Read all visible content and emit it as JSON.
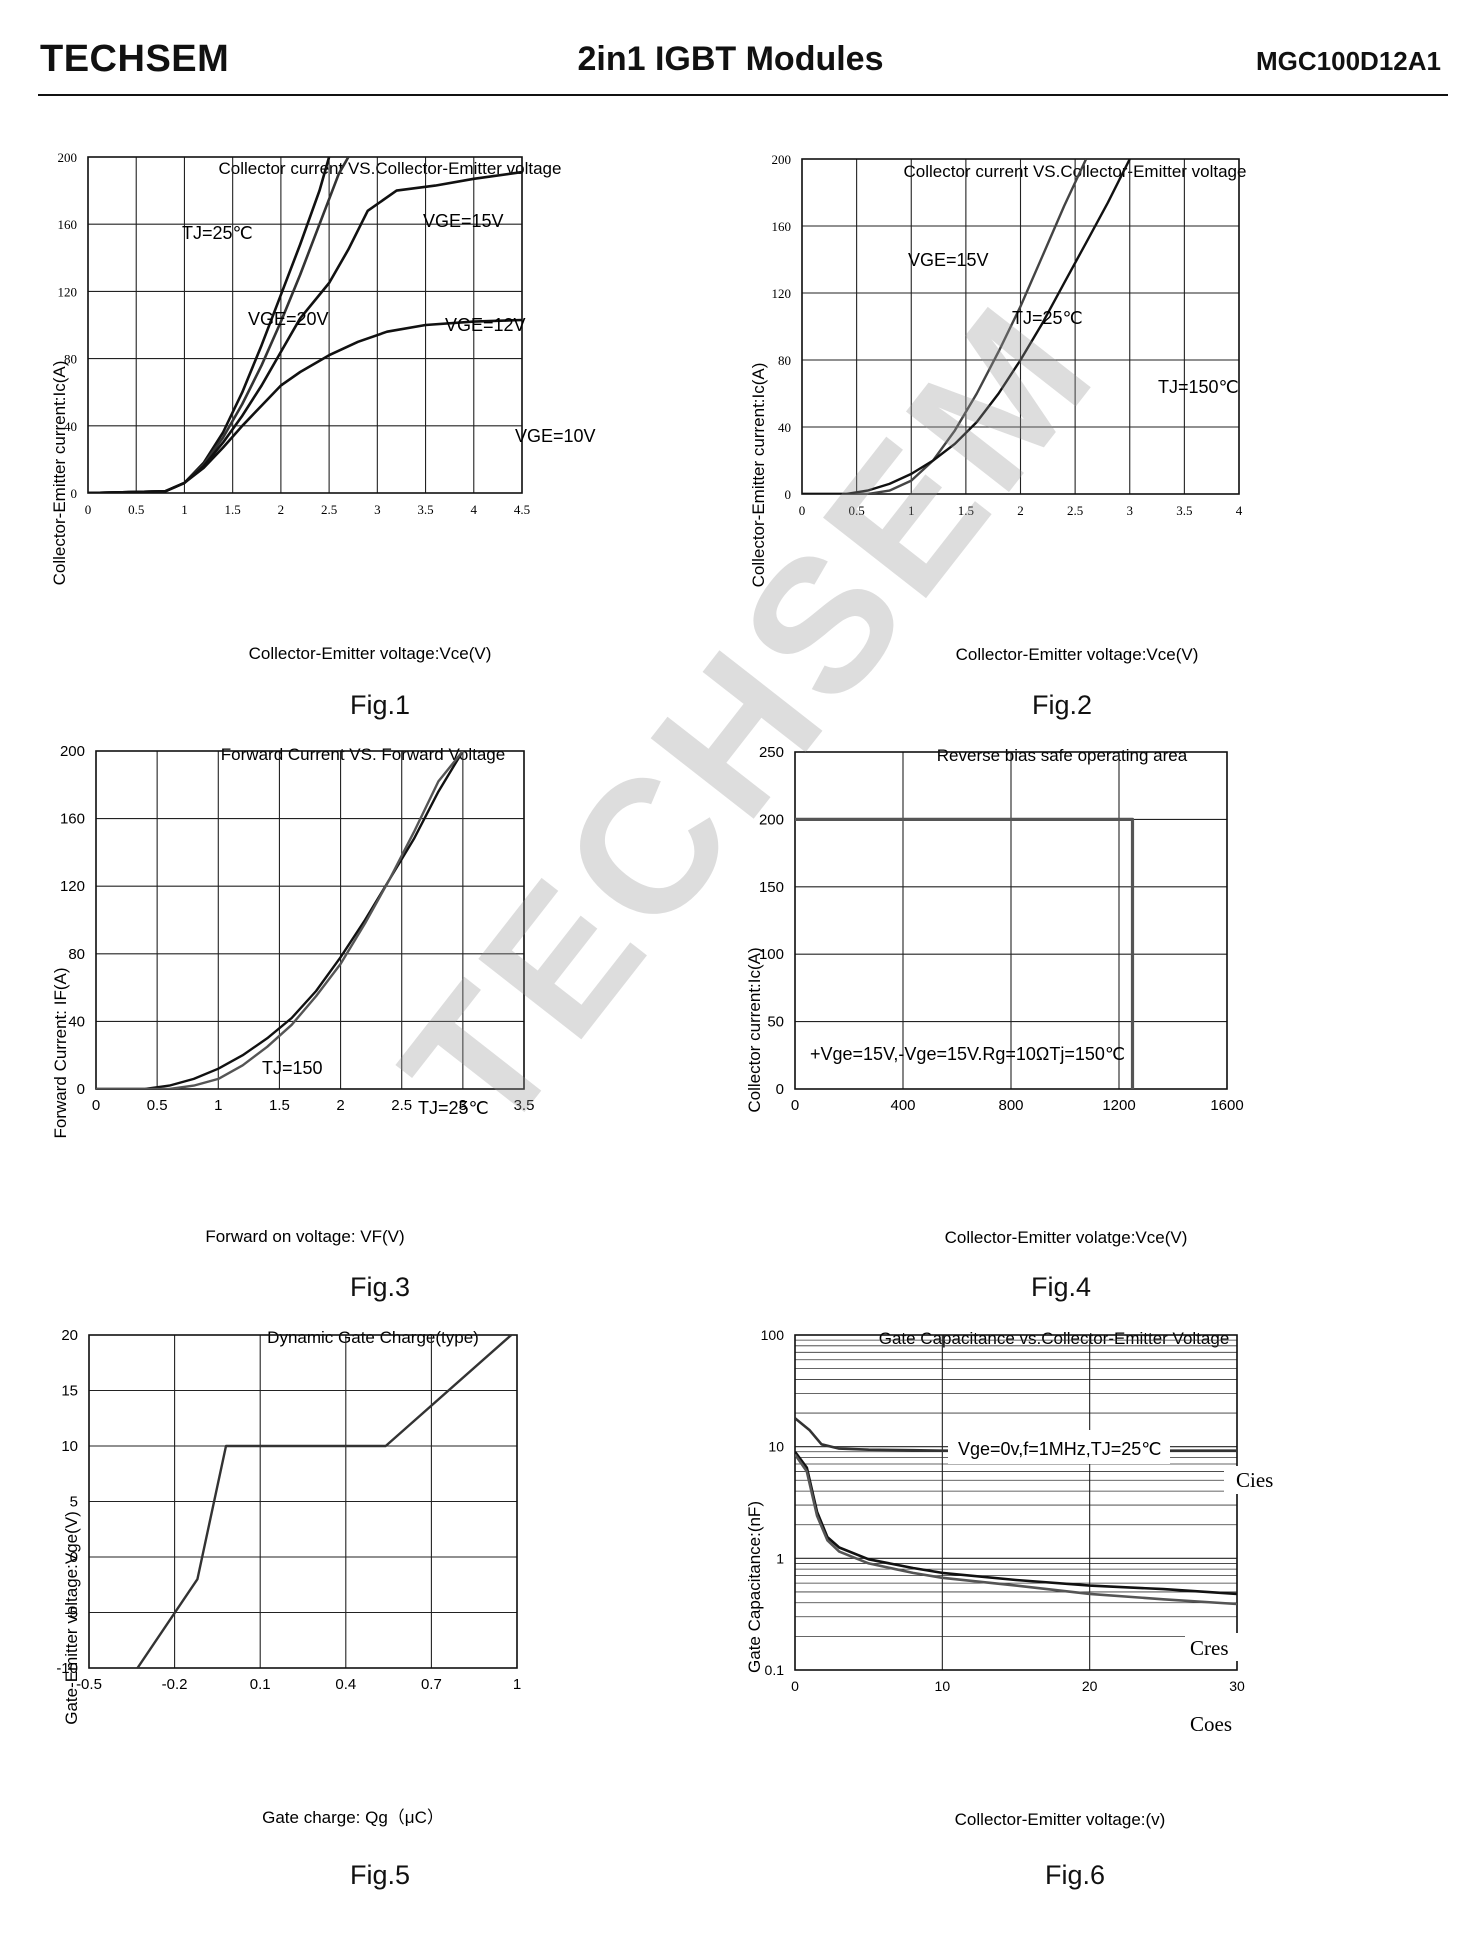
{
  "header": {
    "brand": "TECHSEM",
    "title": "2in1  IGBT  Modules",
    "model": "MGC100D12A1"
  },
  "watermark": "TECHSEM",
  "figures": [
    {
      "label": "Fig.1"
    },
    {
      "label": "Fig.2"
    },
    {
      "label": "Fig.3"
    },
    {
      "label": "Fig.4"
    },
    {
      "label": "Fig.5"
    },
    {
      "label": "Fig.6"
    }
  ],
  "chart_data": [
    {
      "type": "line",
      "title": "Collector current VS.Collector-Emitter voltage",
      "xlabel": "Collector-Emitter voltage:Vce(V)",
      "ylabel": "Collector-Emitter current:Ic(A)",
      "xlim": [
        0,
        4.5
      ],
      "ylim": [
        0,
        200
      ],
      "xticks": [
        "0",
        "0.5",
        "1",
        "1.5",
        "2",
        "2.5",
        "3",
        "3.5",
        "4",
        "4.5"
      ],
      "yticks": [
        "0",
        "40",
        "80",
        "120",
        "160",
        "200"
      ],
      "grid": true,
      "series": [
        {
          "name": "VGE=20V",
          "x": [
            0,
            0.8,
            1.0,
            1.2,
            1.4,
            1.6,
            1.8,
            2.0,
            2.2,
            2.4,
            2.5
          ],
          "y": [
            0,
            1,
            6,
            18,
            36,
            60,
            88,
            118,
            148,
            180,
            200
          ]
        },
        {
          "name": "VGE=15V",
          "x": [
            0,
            0.8,
            1.0,
            1.2,
            1.4,
            1.6,
            1.8,
            2.0,
            2.2,
            2.4,
            2.6,
            2.7
          ],
          "y": [
            0,
            1,
            6,
            17,
            33,
            53,
            76,
            102,
            130,
            160,
            190,
            200
          ]
        },
        {
          "name": "VGE=12V",
          "x": [
            0,
            0.8,
            1.0,
            1.2,
            1.4,
            1.6,
            1.8,
            2.0,
            2.2,
            2.5,
            2.7,
            2.9,
            3.2,
            3.6,
            4.0,
            4.5
          ],
          "y": [
            0,
            1,
            6,
            16,
            30,
            46,
            64,
            84,
            104,
            125,
            145,
            168,
            180,
            183,
            187,
            191
          ]
        },
        {
          "name": "VGE=10V",
          "x": [
            0,
            0.8,
            1.0,
            1.2,
            1.4,
            1.6,
            1.8,
            2.0,
            2.2,
            2.5,
            2.8,
            3.1,
            3.5,
            4.0,
            4.5
          ],
          "y": [
            0,
            1,
            6,
            15,
            27,
            40,
            52,
            64,
            72,
            82,
            90,
            96,
            100,
            102,
            103
          ]
        }
      ],
      "annotations": [
        "TJ=25℃",
        "VGE=20V",
        "VGE=15V",
        "VGE=12V",
        "VGE=10V"
      ]
    },
    {
      "type": "line",
      "title": "Collector current VS.Collector-Emitter voltage",
      "xlabel": "Collector-Emitter voltage:Vce(V)",
      "ylabel": "Collector-Emitter current:Ic(A)",
      "xlim": [
        0,
        4
      ],
      "ylim": [
        0,
        200
      ],
      "xticks": [
        "0",
        "0.5",
        "1",
        "1.5",
        "2",
        "2.5",
        "3",
        "3.5",
        "4"
      ],
      "yticks": [
        "0",
        "40",
        "80",
        "120",
        "160",
        "200"
      ],
      "grid": true,
      "series": [
        {
          "name": "TJ=25℃",
          "x": [
            0,
            0.6,
            0.8,
            1.0,
            1.2,
            1.4,
            1.6,
            1.8,
            2.0,
            2.2,
            2.4,
            2.6
          ],
          "y": [
            0,
            0,
            2,
            8,
            20,
            38,
            60,
            85,
            112,
            142,
            172,
            200
          ]
        },
        {
          "name": "TJ=150℃",
          "x": [
            0,
            0.4,
            0.6,
            0.8,
            1.0,
            1.2,
            1.4,
            1.6,
            1.8,
            2.0,
            2.2,
            2.4,
            2.6,
            2.8,
            3.0
          ],
          "y": [
            0,
            0,
            2,
            6,
            12,
            20,
            30,
            43,
            60,
            80,
            102,
            126,
            150,
            174,
            200
          ]
        }
      ],
      "annotations": [
        "VGE=15V",
        "TJ=25℃",
        "TJ=150℃"
      ]
    },
    {
      "type": "line",
      "title": "Forward Current VS. Forward Voltage",
      "xlabel": "Forward on voltage:  VF(V)",
      "ylabel": "Forward Current:   IF(A)",
      "xlim": [
        0,
        3.5
      ],
      "ylim": [
        0,
        200
      ],
      "xticks": [
        "0",
        "0.5",
        "1",
        "1.5",
        "2",
        "2.5",
        "3",
        "3.5"
      ],
      "yticks": [
        "0",
        "40",
        "80",
        "120",
        "160",
        "200"
      ],
      "grid": true,
      "series": [
        {
          "name": "TJ=150",
          "x": [
            0,
            0.4,
            0.6,
            0.8,
            1.0,
            1.2,
            1.4,
            1.6,
            1.8,
            2.0,
            2.2,
            2.4,
            2.6,
            2.8,
            3.0
          ],
          "y": [
            0,
            0,
            2,
            6,
            12,
            20,
            30,
            42,
            58,
            78,
            100,
            124,
            148,
            176,
            200
          ]
        },
        {
          "name": "TJ=25℃",
          "x": [
            0,
            0.6,
            0.8,
            1.0,
            1.2,
            1.4,
            1.6,
            1.8,
            2.0,
            2.2,
            2.4,
            2.6,
            2.8,
            3.0
          ],
          "y": [
            0,
            0,
            2,
            6,
            14,
            25,
            38,
            55,
            74,
            98,
            124,
            152,
            182,
            200
          ]
        }
      ],
      "annotations": [
        "TJ=150",
        "TJ=25℃"
      ]
    },
    {
      "type": "line",
      "title": "Reverse bias safe operating area",
      "xlabel": "Collector-Emitter volatge:Vce(V)",
      "ylabel": "Collector current:Ic(A)",
      "xlim": [
        0,
        1600
      ],
      "ylim": [
        0,
        250
      ],
      "xticks": [
        "0",
        "400",
        "800",
        "1200",
        "1600"
      ],
      "yticks": [
        "0",
        "50",
        "100",
        "150",
        "200",
        "250"
      ],
      "grid": true,
      "series": [
        {
          "name": "RBSOA",
          "x": [
            0,
            1250,
            1250
          ],
          "y": [
            200,
            200,
            0
          ]
        }
      ],
      "annotations": [
        "+Vge=15V,-Vge=15V.Rg=10ΩTj=150℃"
      ]
    },
    {
      "type": "line",
      "title": "Dynamic Gate Charge(type)",
      "xlabel": "Gate charge:  Qg（μC）",
      "ylabel": "Gate-Emitter voltage:Vge(V)",
      "xlim": [
        -0.5,
        1
      ],
      "ylim": [
        -10,
        20
      ],
      "xticks": [
        "-0.5",
        "-0.2",
        "0.1",
        "0.4",
        "0.7",
        "1"
      ],
      "yticks": [
        "-10",
        "-5",
        "0",
        "5",
        "10",
        "15",
        "20"
      ],
      "grid": true,
      "series": [
        {
          "name": "Vge",
          "x": [
            -0.33,
            -0.12,
            -0.02,
            0.09,
            0.54,
            0.98
          ],
          "y": [
            -10,
            -2,
            10,
            10,
            10,
            20
          ]
        }
      ]
    },
    {
      "type": "line",
      "title": "Gate Capacitance vs.Collector-Emitter Voltage",
      "xlabel": "Collector-Emitter voltage:(v)",
      "ylabel": "Gate Capacitance:(nF)",
      "xlim": [
        0,
        30
      ],
      "ylim": [
        0.1,
        100
      ],
      "yscale": "log",
      "xticks": [
        "0",
        "10",
        "20",
        "30"
      ],
      "yticks": [
        "0.1",
        "1",
        "10",
        "100"
      ],
      "grid": true,
      "series": [
        {
          "name": "Cies",
          "x": [
            0,
            1,
            1.8,
            3,
            5,
            8,
            10,
            15,
            20,
            25,
            30
          ],
          "y": [
            18,
            14,
            10.5,
            9.6,
            9.4,
            9.3,
            9.2,
            9.2,
            9.2,
            9.2,
            9.2
          ]
        },
        {
          "name": "Cres",
          "x": [
            0,
            0.8,
            1.5,
            2.2,
            3,
            5,
            8,
            10,
            15,
            20,
            25,
            30
          ],
          "y": [
            9,
            6.5,
            2.6,
            1.55,
            1.25,
            0.98,
            0.82,
            0.74,
            0.64,
            0.57,
            0.53,
            0.48
          ]
        },
        {
          "name": "Coes",
          "x": [
            0,
            0.8,
            1.5,
            2.2,
            3,
            5,
            8,
            10,
            15,
            20,
            25,
            30
          ],
          "y": [
            8.5,
            6.0,
            2.4,
            1.45,
            1.15,
            0.9,
            0.74,
            0.67,
            0.57,
            0.48,
            0.43,
            0.39
          ]
        }
      ],
      "annotations": [
        "Vge=0v,f=1MHz,TJ=25℃",
        "Cies",
        "Cres",
        "Coes"
      ]
    }
  ]
}
